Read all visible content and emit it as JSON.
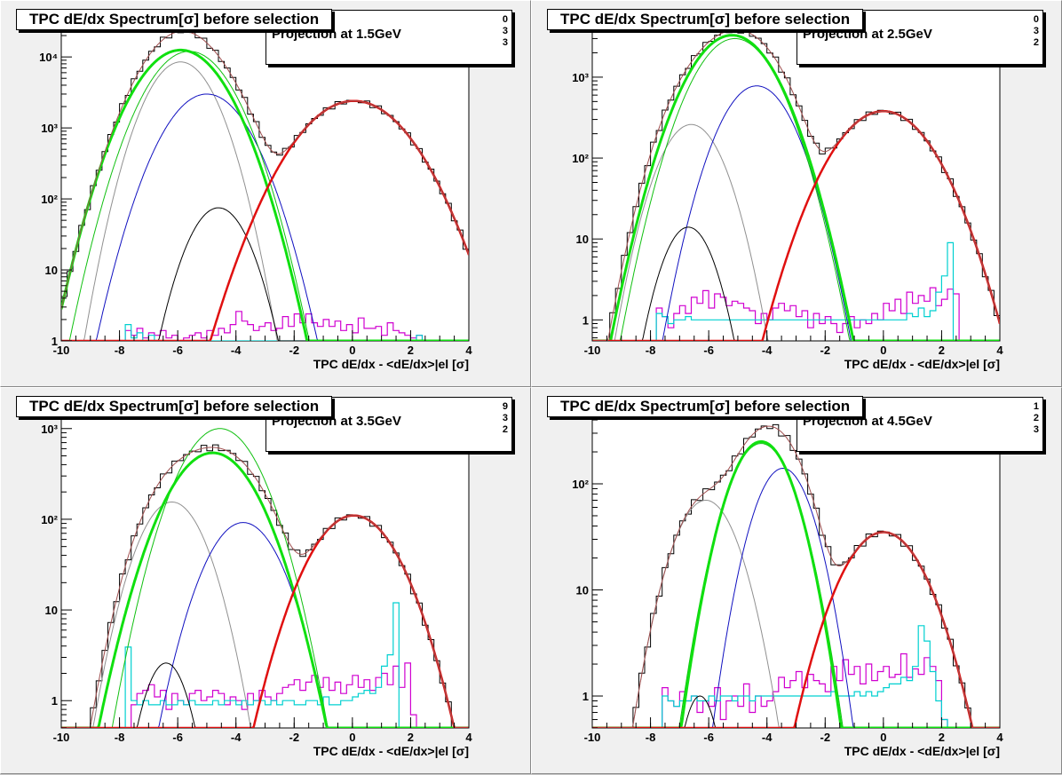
{
  "colors": {
    "histogram": "#000000",
    "total_fit": "#a05050",
    "electron": "#e01010",
    "pion": "#10e010",
    "pion_thin": "#10c010",
    "kaon": "#1010c0",
    "proton": "#909090",
    "deuteron": "#000000",
    "residual_magenta": "#d000d0",
    "residual_cyan": "#00d0d0"
  },
  "chart_data": [
    {
      "type": "line",
      "title": "TPC dE/dx Spectrum[σ] before selection",
      "subtitle": "Projection at 1.5GeV",
      "stats_values": [
        "0",
        "3",
        "3"
      ],
      "xlabel": "TPC dE/dx - <dE/dx>|el [σ]",
      "xlim": [
        -10,
        4
      ],
      "log_y": true,
      "ylim": [
        1,
        40000
      ],
      "xticks": [
        "-10",
        "-8",
        "-6",
        "-4",
        "-2",
        "0",
        "2",
        "4"
      ],
      "yticks": [
        {
          "v": 1,
          "label": "1"
        },
        {
          "v": 10,
          "label": "10"
        },
        {
          "v": 100,
          "label": "10²"
        },
        {
          "v": 1000,
          "label": "10³"
        },
        {
          "v": 10000,
          "label": "10⁴"
        }
      ],
      "components": [
        {
          "name": "proton",
          "amp": 8500,
          "mean": -5.9,
          "sigma": 0.78
        },
        {
          "name": "kaon",
          "amp": 3000,
          "mean": -5.0,
          "sigma": 0.95
        },
        {
          "name": "deuteron",
          "amp": 75,
          "mean": -4.6,
          "sigma": 0.7
        },
        {
          "name": "pion_thin",
          "amp": 12000,
          "mean": -5.6,
          "sigma": 0.95
        },
        {
          "name": "pion",
          "amp": 12500,
          "mean": -5.9,
          "sigma": 1.0
        },
        {
          "name": "electron",
          "amp": 2400,
          "mean": 0.05,
          "sigma": 1.25
        }
      ],
      "residual_magenta": [
        0,
        0,
        0,
        0,
        0,
        0,
        0,
        0,
        0,
        0,
        0,
        1.4,
        1.2,
        1.5,
        1.1,
        1.3,
        1.2,
        1.4,
        1.1,
        1.2,
        1.0,
        1.1,
        1.2,
        1.3,
        1.1,
        1.4,
        1.2,
        1.5,
        1.3,
        1.7,
        2.6,
        1.9,
        1.7,
        1.4,
        1.6,
        1.8,
        1.4,
        1.5,
        2.2,
        1.6,
        2.4,
        1.8,
        2.4,
        1.8,
        1.6,
        2.0,
        1.6,
        1.9,
        1.4,
        1.7,
        1.3,
        2.1,
        1.5,
        1.5,
        1.6,
        1.2,
        1.8,
        1.4,
        1.3,
        1.2,
        1.1,
        1.2,
        0,
        0,
        0,
        0,
        0,
        0,
        0,
        0
      ],
      "residual_cyan": [
        0,
        0,
        0,
        0,
        0,
        0,
        0,
        0,
        0,
        0,
        0,
        1.7,
        1.1,
        1.3,
        1.0,
        1.2,
        1.0,
        1.0,
        1.0,
        1.0,
        1.0,
        1.0,
        1.0,
        1.0,
        1.0,
        1.0,
        1.0,
        1.0,
        1.0,
        1.0,
        1.0,
        1.0,
        1.0,
        1.0,
        1.0,
        1.0,
        1.0,
        1.0,
        1.0,
        1.0,
        1.0,
        1.0,
        1.0,
        1.0,
        1.0,
        1.0,
        1.0,
        1.0,
        1.0,
        1.0,
        1.0,
        1.0,
        1.0,
        1.0,
        1.0,
        1.0,
        1.0,
        1.0,
        1.0,
        1.0,
        1.0,
        1.2,
        0,
        0,
        0,
        0,
        0,
        0,
        0,
        0
      ],
      "data_scale": [
        1.0,
        1.0,
        1.0,
        1.0,
        1.0,
        1.0,
        1.0,
        1.0,
        1.0,
        1.0,
        1.0,
        1.0,
        1.0,
        1.0,
        1.0,
        1.0,
        1.0,
        1.0,
        1.0,
        1.0,
        1.0,
        1.0,
        1.0,
        1.0,
        1.0,
        1.0,
        1.0,
        1.0,
        1.0,
        1.0,
        1.0,
        1.0,
        1.0,
        1.0,
        1.0,
        1.0,
        1.0,
        1.0,
        1.0,
        1.0,
        1.0,
        1.0,
        1.0,
        1.0,
        1.0,
        1.0,
        1.0,
        1.0,
        1.0,
        1.0,
        1.0,
        1.0,
        1.0,
        1.0,
        1.0,
        1.0,
        1.0,
        1.0,
        1.0,
        1.0,
        1.0,
        1.0,
        1.0,
        1.0,
        1.0,
        1.0,
        1.0,
        1.0,
        1.0,
        1.0
      ]
    },
    {
      "type": "line",
      "title": "TPC dE/dx Spectrum[σ] before selection",
      "subtitle": "Projection at 2.5GeV",
      "stats_values": [
        "0",
        "3",
        "2"
      ],
      "xlabel": "TPC dE/dx - <dE/dx>|el [σ]",
      "xlim": [
        -10,
        4
      ],
      "log_y": true,
      "ylim": [
        0.55,
        6000
      ],
      "xticks": [
        "-10",
        "-8",
        "-6",
        "-4",
        "-2",
        "0",
        "2",
        "4"
      ],
      "yticks": [
        {
          "v": 1,
          "label": "1"
        },
        {
          "v": 10,
          "label": "10"
        },
        {
          "v": 100,
          "label": "10²"
        },
        {
          "v": 1000,
          "label": "10³"
        }
      ],
      "components": [
        {
          "name": "proton",
          "amp": 260,
          "mean": -6.6,
          "sigma": 0.75
        },
        {
          "name": "kaon",
          "amp": 780,
          "mean": -4.35,
          "sigma": 0.85
        },
        {
          "name": "deuteron",
          "amp": 14,
          "mean": -6.7,
          "sigma": 0.62
        },
        {
          "name": "pion_thin",
          "amp": 3000,
          "mean": -5.1,
          "sigma": 0.95
        },
        {
          "name": "pion",
          "amp": 3300,
          "mean": -5.2,
          "sigma": 1.0
        },
        {
          "name": "electron",
          "amp": 380,
          "mean": 0.0,
          "sigma": 1.15
        }
      ],
      "residual_magenta": [
        0,
        0,
        0,
        0,
        0,
        0,
        0,
        0,
        0,
        0,
        0,
        1.4,
        1.1,
        0.8,
        1.2,
        1.5,
        1.2,
        1.9,
        1.6,
        2.3,
        1.4,
        2.1,
        1.9,
        1.5,
        1.7,
        1.6,
        1.4,
        1.3,
        0.9,
        1.2,
        1.0,
        1.4,
        1.6,
        1.3,
        1.5,
        1.1,
        1.3,
        0.8,
        1.2,
        0.9,
        1.1,
        0.9,
        0.7,
        0.9,
        1.1,
        0.8,
        1.0,
        0.9,
        1.2,
        1.0,
        1.6,
        1.3,
        1.8,
        1.2,
        2.2,
        1.6,
        2.0,
        1.7,
        2.5,
        1.5,
        1.8,
        2.4,
        2.1,
        0,
        0,
        0,
        0,
        0,
        0,
        0
      ],
      "residual_cyan": [
        0,
        0,
        0,
        0,
        0,
        0,
        0,
        0,
        0,
        0,
        0,
        1.2,
        1.1,
        0.9,
        1.0,
        1.0,
        1.1,
        1.0,
        1.0,
        1.0,
        1.0,
        1.0,
        1.0,
        1.0,
        1.0,
        1.0,
        1.0,
        1.0,
        1.0,
        1.0,
        1.0,
        1.0,
        1.0,
        1.0,
        1.0,
        1.0,
        1.0,
        1.0,
        1.0,
        1.0,
        1.0,
        1.0,
        1.0,
        1.0,
        1.0,
        1.0,
        1.0,
        1.0,
        1.0,
        1.0,
        1.0,
        1.0,
        1.0,
        1.0,
        1.2,
        1.1,
        1.4,
        1.1,
        1.3,
        2.2,
        3.5,
        9,
        0,
        0,
        0,
        0,
        0,
        0,
        0,
        0
      ],
      "data_scale": [
        1.0,
        1.0,
        1.0,
        1.0,
        1.0,
        1.0,
        1.0,
        1.0,
        1.0,
        1.0,
        1.0,
        1.0,
        1.0,
        1.0,
        1.0,
        1.0,
        1.0,
        1.0,
        1.0,
        1.0,
        1.0,
        1.0,
        1.0,
        1.0,
        1.0,
        1.0,
        1.0,
        1.0,
        1.0,
        1.0,
        1.0,
        1.0,
        1.0,
        1.0,
        1.0,
        1.0,
        1.0,
        1.0,
        1.0,
        1.0,
        1.0,
        1.0,
        1.0,
        1.0,
        1.0,
        1.0,
        1.0,
        1.0,
        1.0,
        1.0,
        1.0,
        1.0,
        1.0,
        1.0,
        1.0,
        1.0,
        1.0,
        1.0,
        1.0,
        1.0,
        1.0,
        1.0,
        1.0,
        1.0,
        1.0,
        1.0,
        1.0,
        1.0,
        1.0,
        1.0
      ]
    },
    {
      "type": "line",
      "title": "TPC dE/dx Spectrum[σ] before selection",
      "subtitle": "Projection at 3.5GeV",
      "stats_values": [
        "9",
        "3",
        "2"
      ],
      "xlabel": "TPC dE/dx - <dE/dx>|el [σ]",
      "xlim": [
        -10,
        4
      ],
      "log_y": true,
      "ylim": [
        0.5,
        2000
      ],
      "xticks": [
        "-10",
        "-8",
        "-6",
        "-4",
        "-2",
        "0",
        "2",
        "4"
      ],
      "yticks": [
        {
          "v": 1,
          "label": "1"
        },
        {
          "v": 10,
          "label": "10"
        },
        {
          "v": 100,
          "label": "10²"
        },
        {
          "v": 1000,
          "label": "10³"
        }
      ],
      "components": [
        {
          "name": "proton",
          "amp": 155,
          "mean": -6.2,
          "sigma": 0.8
        },
        {
          "name": "kaon",
          "amp": 92,
          "mean": -3.75,
          "sigma": 0.9
        },
        {
          "name": "deuteron",
          "amp": 2.6,
          "mean": -6.4,
          "sigma": 0.55
        },
        {
          "name": "pion_thin",
          "amp": 1000,
          "mean": -4.55,
          "sigma": 0.95
        },
        {
          "name": "pion",
          "amp": 540,
          "mean": -4.8,
          "sigma": 1.05
        },
        {
          "name": "electron",
          "amp": 110,
          "mean": 0.05,
          "sigma": 1.05
        }
      ],
      "residual_magenta": [
        0,
        0,
        0,
        0,
        0,
        0,
        0,
        0,
        0,
        0,
        0,
        0,
        0.9,
        1.2,
        1.3,
        1.5,
        1.1,
        1.3,
        0.8,
        1.2,
        1.0,
        0.9,
        1.2,
        1.3,
        1.0,
        1.1,
        1.3,
        1.2,
        0.9,
        1.1,
        1.0,
        0.8,
        1.2,
        1.0,
        1.3,
        1.1,
        1.0,
        1.2,
        1.4,
        1.5,
        1.7,
        1.3,
        1.6,
        1.9,
        1.4,
        1.8,
        1.3,
        1.6,
        1.2,
        1.5,
        1.9,
        1.4,
        1.7,
        1.3,
        1.8,
        2.0,
        1.5,
        2.4,
        1.4,
        2.6,
        0.7,
        0,
        0,
        0,
        0,
        0,
        0,
        0,
        0
      ],
      "residual_cyan": [
        0,
        0,
        0,
        0,
        0,
        0,
        0,
        0,
        0,
        0,
        0,
        3.9,
        1.0,
        0.9,
        1.0,
        0.9,
        0.9,
        1.0,
        0.9,
        0.9,
        1.0,
        0.9,
        1.0,
        0.9,
        0.9,
        0.9,
        1.0,
        0.9,
        1.0,
        1.0,
        0.9,
        1.0,
        0.9,
        1.0,
        1.0,
        0.9,
        1.0,
        0.9,
        1.0,
        1.0,
        0.9,
        0.9,
        1.0,
        1.0,
        0.9,
        1.1,
        0.9,
        0.9,
        1.0,
        1.0,
        1.1,
        1.2,
        1.3,
        1.2,
        1.4,
        2.4,
        3.2,
        12,
        0,
        0,
        0,
        0,
        0,
        0,
        0,
        0,
        0,
        0,
        0,
        0
      ],
      "data_scale": [
        1.0,
        1.0,
        1.0,
        1.0,
        1.0,
        1.0,
        1.0,
        1.0,
        1.0,
        1.0,
        1.0,
        1.0,
        1.0,
        1.0,
        1.0,
        1.0,
        1.0,
        1.0,
        1.0,
        1.0,
        1.0,
        1.0,
        1.0,
        1.0,
        1.0,
        1.0,
        1.0,
        1.0,
        1.0,
        1.0,
        1.0,
        1.0,
        1.0,
        1.0,
        1.0,
        1.0,
        1.0,
        1.0,
        1.0,
        1.0,
        1.0,
        1.0,
        1.0,
        1.0,
        1.0,
        1.0,
        1.0,
        1.0,
        1.0,
        1.0,
        1.0,
        1.0,
        1.0,
        1.0,
        1.0,
        1.0,
        1.0,
        1.0,
        1.0,
        1.0,
        1.0,
        1.0,
        1.0,
        1.0,
        1.0,
        1.0,
        1.0,
        1.0,
        1.0,
        1.0
      ]
    },
    {
      "type": "line",
      "title": "TPC dE/dx Spectrum[σ] before selection",
      "subtitle": "Projection at 4.5GeV",
      "stats_values": [
        "1",
        "2",
        "3"
      ],
      "xlabel": "TPC dE/dx - <dE/dx>|el [σ]",
      "xlim": [
        -10,
        4
      ],
      "log_y": true,
      "ylim": [
        0.5,
        600
      ],
      "xticks": [
        "-10",
        "-8",
        "-6",
        "-4",
        "-2",
        "0",
        "2",
        "4"
      ],
      "yticks": [
        {
          "v": 1,
          "label": "1"
        },
        {
          "v": 10,
          "label": "10"
        },
        {
          "v": 100,
          "label": "10²"
        }
      ],
      "components": [
        {
          "name": "proton",
          "amp": 70,
          "mean": -6.1,
          "sigma": 0.8
        },
        {
          "name": "kaon",
          "amp": 140,
          "mean": -3.45,
          "sigma": 0.72
        },
        {
          "name": "deuteron",
          "amp": 1.0,
          "mean": -6.3,
          "sigma": 0.45
        },
        {
          "name": "pion_thin",
          "amp": 240,
          "mean": -4.2,
          "sigma": 0.8
        },
        {
          "name": "pion",
          "amp": 250,
          "mean": -4.2,
          "sigma": 0.78
        },
        {
          "name": "electron",
          "amp": 35,
          "mean": 0.0,
          "sigma": 1.05
        }
      ],
      "residual_magenta": [
        0,
        0,
        0,
        0,
        0,
        0,
        0,
        0,
        0,
        0,
        0,
        0,
        1.2,
        0.9,
        0.8,
        1.1,
        0.9,
        1.0,
        0.7,
        0.9,
        0.8,
        1.2,
        0.6,
        0.9,
        1.0,
        0.8,
        1.3,
        0.7,
        1.0,
        0.8,
        0.9,
        1.1,
        1.5,
        1.2,
        1.4,
        1.7,
        1.2,
        1.6,
        1.4,
        1.3,
        1.1,
        1.9,
        1.4,
        2.2,
        1.6,
        1.9,
        1.3,
        2.0,
        1.4,
        1.7,
        1.9,
        1.5,
        1.6,
        2.5,
        1.5,
        1.8,
        1.6,
        2.3,
        1.9,
        1.4,
        0.6,
        0,
        0,
        0,
        0,
        0,
        0,
        0,
        0,
        0
      ],
      "residual_cyan": [
        0,
        0,
        0,
        0,
        0,
        0,
        0,
        0,
        0,
        0,
        0,
        0,
        1.0,
        0.9,
        0.8,
        0.9,
        0.9,
        1.0,
        0.9,
        0.9,
        1.0,
        0.9,
        1.0,
        1.0,
        0.9,
        1.0,
        1.0,
        0.9,
        1.0,
        1.0,
        1.0,
        1.0,
        1.0,
        1.0,
        1.0,
        1.0,
        1.0,
        1.0,
        1.0,
        1.0,
        1.0,
        1.1,
        1.0,
        1.0,
        1.0,
        1.1,
        1.0,
        1.1,
        1.0,
        1.1,
        1.2,
        1.3,
        1.3,
        1.5,
        1.4,
        1.9,
        4.6,
        3.3,
        1.7,
        0.9,
        0.6,
        0,
        0,
        0,
        0,
        0,
        0,
        0,
        0,
        0
      ],
      "data_scale": [
        1.0,
        1.0,
        1.0,
        1.0,
        1.0,
        1.0,
        1.0,
        1.0,
        1.0,
        1.0,
        1.0,
        1.0,
        1.0,
        1.0,
        1.0,
        1.0,
        1.0,
        1.0,
        1.0,
        1.0,
        1.0,
        1.0,
        1.0,
        1.0,
        1.0,
        1.0,
        1.0,
        1.0,
        1.0,
        1.0,
        1.0,
        1.0,
        1.0,
        1.0,
        1.0,
        1.0,
        1.0,
        1.0,
        1.0,
        1.0,
        1.0,
        1.0,
        1.0,
        1.0,
        1.0,
        1.0,
        1.0,
        1.0,
        1.0,
        1.0,
        1.0,
        1.0,
        1.0,
        1.0,
        1.0,
        1.0,
        1.0,
        1.0,
        1.0,
        1.0,
        1.0,
        1.0,
        1.0,
        1.0,
        1.0,
        1.0,
        1.0,
        1.0,
        1.0,
        1.0
      ]
    }
  ]
}
